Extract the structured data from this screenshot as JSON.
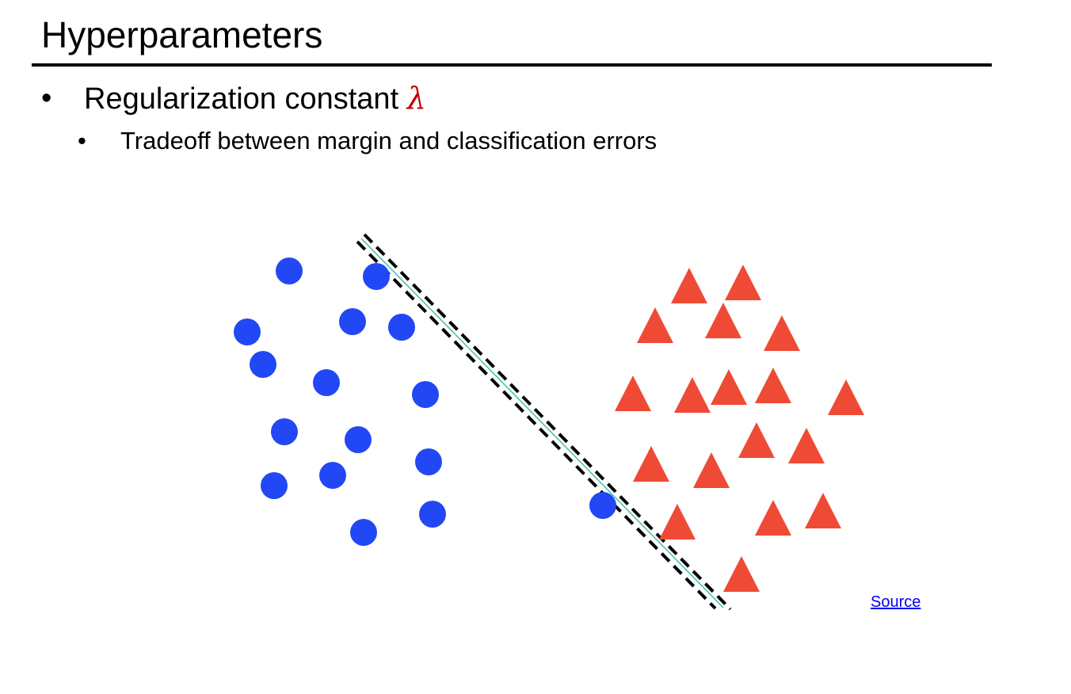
{
  "slide": {
    "title": "Hyperparameters",
    "bullets": [
      {
        "text": "Regularization constant ",
        "symbol": "λ"
      },
      {
        "text": "Tradeoff between margin and classification errors"
      }
    ],
    "bullet_glyph": "•",
    "source_link": "Source"
  },
  "figure": {
    "class_a": {
      "shape": "circle",
      "color": "#2247f5"
    },
    "class_b": {
      "shape": "triangle",
      "color": "#ef4a35"
    },
    "separator_color": "#40c0b0",
    "margin_color": "#000000"
  }
}
